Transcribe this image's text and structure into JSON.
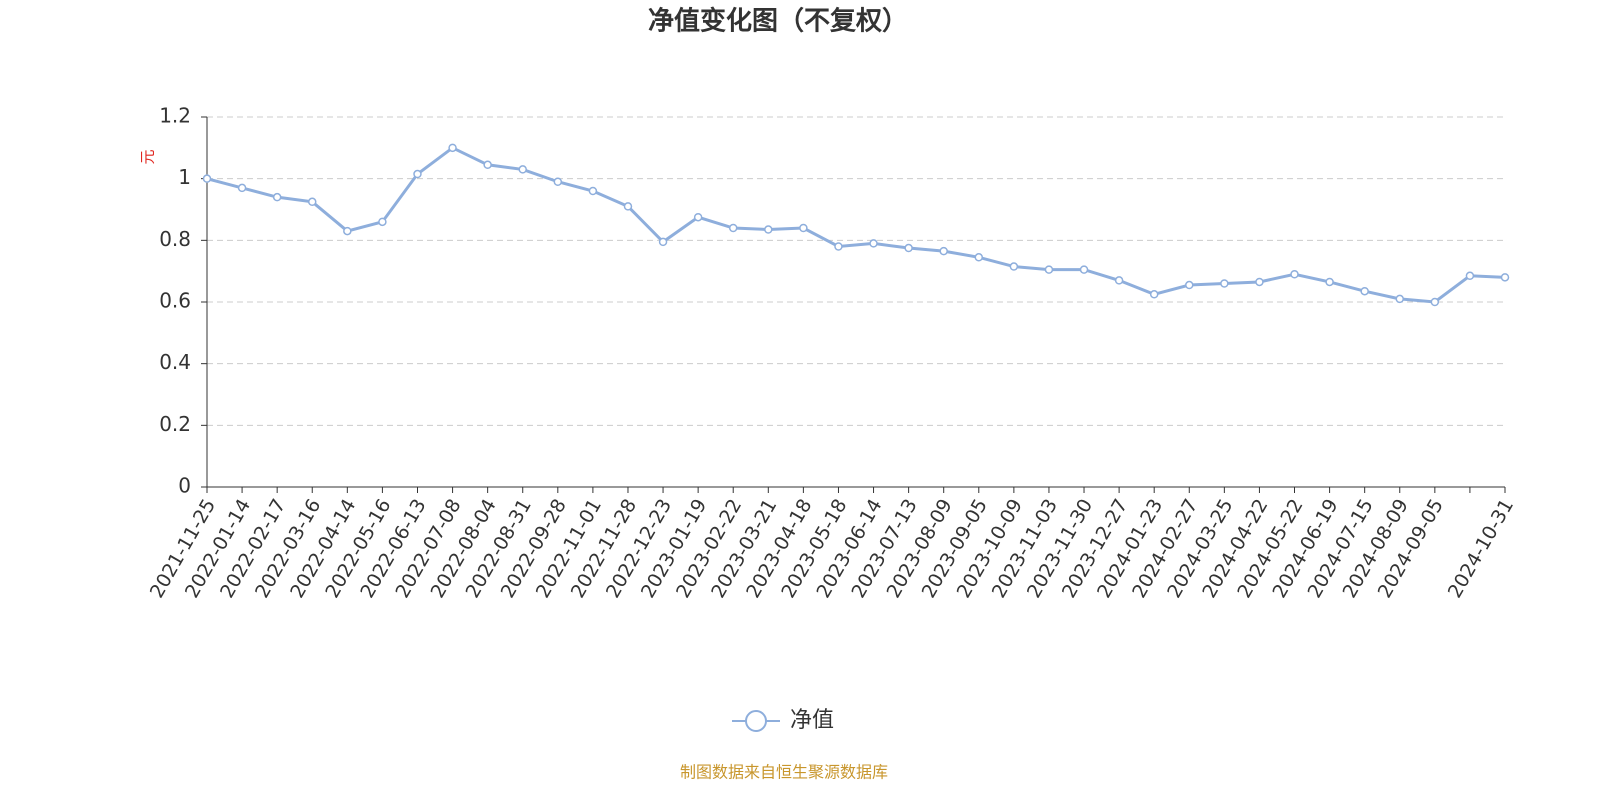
{
  "chart_data": {
    "type": "line",
    "title": "净值变化图（不复权）",
    "y_label": "元",
    "categories": [
      "2021-11-25",
      "2022-01-14",
      "2022-02-17",
      "2022-03-16",
      "2022-04-14",
      "2022-05-16",
      "2022-06-13",
      "2022-07-08",
      "2022-08-04",
      "2022-08-31",
      "2022-09-28",
      "2022-11-01",
      "2022-11-28",
      "2022-12-23",
      "2023-01-19",
      "2023-02-22",
      "2023-03-21",
      "2023-04-18",
      "2023-05-18",
      "2023-06-14",
      "2023-07-13",
      "2023-08-09",
      "2023-09-05",
      "2023-10-09",
      "2023-11-03",
      "2023-11-30",
      "2023-12-27",
      "2024-01-23",
      "2024-02-27",
      "2024-03-25",
      "2024-04-22",
      "2024-05-22",
      "2024-06-19",
      "2024-07-15",
      "2024-08-09",
      "2024-09-05",
      null,
      "2024-10-31"
    ],
    "series": [
      {
        "name": "净值",
        "color": "#8eaedc",
        "values": [
          1.0,
          0.97,
          0.94,
          0.925,
          0.83,
          0.86,
          1.015,
          1.1,
          1.045,
          1.03,
          0.99,
          0.96,
          0.91,
          0.795,
          0.875,
          0.84,
          0.835,
          0.84,
          0.78,
          0.79,
          0.775,
          0.765,
          0.745,
          0.715,
          0.705,
          0.705,
          0.67,
          0.625,
          0.655,
          0.66,
          0.665,
          0.69,
          0.665,
          0.635,
          0.61,
          0.6,
          0.685,
          0.68
        ]
      }
    ],
    "ylim": [
      0,
      1.2
    ],
    "yticks": [
      0,
      0.2,
      0.4,
      0.6,
      0.8,
      1,
      1.2
    ],
    "grid": true,
    "legend": "bottom",
    "source": "制图数据来自恒生聚源数据库"
  }
}
